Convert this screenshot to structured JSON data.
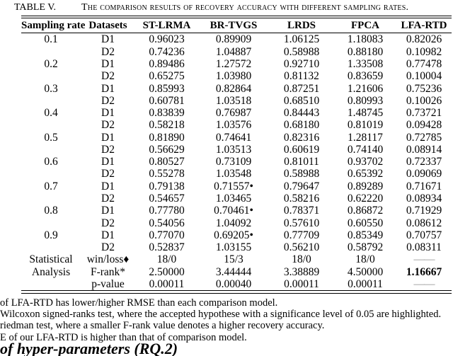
{
  "caption": {
    "label": "TABLE V.",
    "title": "The comparison results of recovery accuracy with different sampling rates."
  },
  "table": {
    "headers": [
      "Sampling rate",
      "Datasets",
      "ST-LRMA",
      "BR-TVGS",
      "LRDS",
      "FPCA",
      "LFA-RTD"
    ],
    "rows": [
      {
        "rate": "0.1",
        "dataset": "D1",
        "values": [
          "0.96023",
          "0.89909",
          "1.06125",
          "1.18083",
          "0.82026"
        ]
      },
      {
        "rate": "",
        "dataset": "D2",
        "values": [
          "0.74236",
          "1.04887",
          "0.58988",
          "0.88180",
          "0.10982"
        ]
      },
      {
        "rate": "0.2",
        "dataset": "D1",
        "values": [
          "0.89486",
          "1.27572",
          "0.92710",
          "1.33508",
          "0.77478"
        ]
      },
      {
        "rate": "",
        "dataset": "D2",
        "values": [
          "0.65275",
          "1.03980",
          "0.81132",
          "0.83659",
          "0.10004"
        ]
      },
      {
        "rate": "0.3",
        "dataset": "D1",
        "values": [
          "0.85993",
          "0.82864",
          "0.87251",
          "1.21606",
          "0.75236"
        ]
      },
      {
        "rate": "",
        "dataset": "D2",
        "values": [
          "0.60781",
          "1.03518",
          "0.68510",
          "0.80993",
          "0.10026"
        ]
      },
      {
        "rate": "0.4",
        "dataset": "D1",
        "values": [
          "0.83839",
          "0.76987",
          "0.84443",
          "1.48745",
          "0.73721"
        ]
      },
      {
        "rate": "",
        "dataset": "D2",
        "values": [
          "0.58218",
          "1.03576",
          "0.68180",
          "0.81019",
          "0.09428"
        ]
      },
      {
        "rate": "0.5",
        "dataset": "D1",
        "values": [
          "0.81890",
          "0.74641",
          "0.82316",
          "1.28117",
          "0.72785"
        ]
      },
      {
        "rate": "",
        "dataset": "D2",
        "values": [
          "0.56629",
          "1.03513",
          "0.60619",
          "0.74140",
          "0.08914"
        ]
      },
      {
        "rate": "0.6",
        "dataset": "D1",
        "values": [
          "0.80527",
          "0.73109",
          "0.81011",
          "0.93702",
          "0.72337"
        ]
      },
      {
        "rate": "",
        "dataset": "D2",
        "values": [
          "0.55278",
          "1.03548",
          "0.58988",
          "0.65392",
          "0.09069"
        ]
      },
      {
        "rate": "0.7",
        "dataset": "D1",
        "values": [
          "0.79138",
          "0.71557•",
          "0.79647",
          "0.89289",
          "0.71671"
        ]
      },
      {
        "rate": "",
        "dataset": "D2",
        "values": [
          "0.54657",
          "1.03465",
          "0.58216",
          "0.62220",
          "0.08934"
        ]
      },
      {
        "rate": "0.8",
        "dataset": "D1",
        "values": [
          "0.77780",
          "0.70461•",
          "0.78371",
          "0.86872",
          "0.71929"
        ]
      },
      {
        "rate": "",
        "dataset": "D2",
        "values": [
          "0.54056",
          "1.04092",
          "0.57610",
          "0.60550",
          "0.08612"
        ]
      },
      {
        "rate": "0.9",
        "dataset": "D1",
        "values": [
          "0.77070",
          "0.69205•",
          "0.77709",
          "0.85349",
          "0.70757"
        ]
      },
      {
        "rate": "",
        "dataset": "D2",
        "values": [
          "0.52837",
          "1.03155",
          "0.56210",
          "0.58792",
          "0.08311"
        ]
      }
    ],
    "stats_label": [
      "Statistical",
      "Analysis",
      ""
    ],
    "stats_rows": [
      {
        "metric": "win/loss♦",
        "values": [
          "18/0",
          "15/3",
          "18/0",
          "18/0",
          "——"
        ],
        "bold_last": false
      },
      {
        "metric": "F-rank*",
        "values": [
          "2.50000",
          "3.44444",
          "3.38889",
          "4.50000",
          "1.16667"
        ],
        "bold_last": true
      },
      {
        "metric": "p-value",
        "values": [
          "0.00011",
          "0.00040",
          "0.00011",
          "0.00011",
          "——"
        ],
        "bold_last": false
      }
    ]
  },
  "footnotes": [
    "of LFA-RTD has lower/higher RMSE than each comparison model.",
    "Wilcoxon signed-ranks test, where the accepted hypothese with a significance level of 0.05 are highlighted.",
    "riedman test, where a smaller F-rank value denotes a higher recovery accuracy.",
    "E of our LFA-RTD is higher than that of comparison model."
  ],
  "section_heading": "of hyper-parameters (RQ.2)",
  "colors": {
    "text": "#000000",
    "rule": "#000000",
    "dash": "#8c8c8c"
  }
}
